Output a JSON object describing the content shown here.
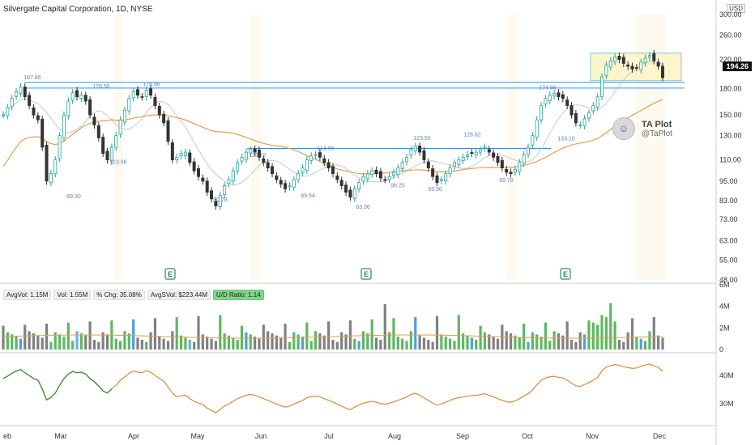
{
  "header": {
    "title": "Silvergate Capital Corporation, 1D, NYSE",
    "currency": "USD",
    "last_price": "194.26"
  },
  "watermark": {
    "name": "TA Plot",
    "handle": "@TaPlot"
  },
  "volume_stats": {
    "avg_vol": "AvgVol: 1.15M",
    "vol": "Vol: 1.55M",
    "pct_chg": "% Chg: 35.08%",
    "avg_dollar_vol": "AvgSVol: $223.44M",
    "ud_ratio": "U/D Ratio: 1.14"
  },
  "colors": {
    "up": "#26a69a",
    "down": "#333333",
    "ma_orange": "#e0a050",
    "ma_gray": "#c8c8c8",
    "trendline": "#2196f3",
    "highlight": "#fff5cc",
    "vol_up": "#4caf50",
    "vol_down": "#555555",
    "vol_blue": "#3a96dd",
    "rs_line": "#d98a3a",
    "rs_green": "#2e8b3a",
    "rs_blue": "#2a5ad8"
  },
  "chart_data": {
    "type": "candlestick",
    "y_scale": "log",
    "ylim": [
      48,
      300
    ],
    "price_ticks": [
      "300.00",
      "260.00",
      "220.00",
      "180.00",
      "150.00",
      "130.00",
      "110.00",
      "95.00",
      "83.00",
      "73.00",
      "63.00",
      "55.00",
      "48.00"
    ],
    "x_ticks": [
      "eb",
      "Mar",
      "Apr",
      "May",
      "Jun",
      "Jul",
      "Aug",
      "Sep",
      "Oct",
      "Nov",
      "Dec"
    ],
    "volume_ticks": [
      "6M",
      "4M",
      "2M",
      "0"
    ],
    "rs_ticks": [
      "40M",
      "30M"
    ],
    "annotations": [
      {
        "text": "187.86",
        "value": 187.86
      },
      {
        "text": "176.56",
        "value": 176.56
      },
      {
        "text": "178.96",
        "value": 178.96
      },
      {
        "text": "113.06",
        "value": 113.06
      },
      {
        "text": "89.30",
        "value": 89.3
      },
      {
        "text": "80.78",
        "value": 80.78
      },
      {
        "text": "118.72",
        "value": 118.72
      },
      {
        "text": "114.96",
        "value": 114.96
      },
      {
        "text": "89.64",
        "value": 89.64
      },
      {
        "text": "83.06",
        "value": 83.06
      },
      {
        "text": "96.25",
        "value": 96.25
      },
      {
        "text": "123.50",
        "value": 123.5
      },
      {
        "text": "93.90",
        "value": 93.9
      },
      {
        "text": "126.62",
        "value": 126.62
      },
      {
        "text": "99.78",
        "value": 99.78
      },
      {
        "text": "174.99",
        "value": 174.99
      },
      {
        "text": "133.10",
        "value": 133.1
      }
    ],
    "earnings_markers": [
      "E",
      "E",
      "E"
    ],
    "close_series": [
      150,
      158,
      168,
      176,
      182,
      170,
      160,
      150,
      145,
      120,
      95,
      100,
      110,
      130,
      150,
      165,
      175,
      170,
      172,
      165,
      150,
      140,
      128,
      115,
      110,
      120,
      130,
      145,
      155,
      168,
      176,
      172,
      170,
      178,
      172,
      160,
      150,
      142,
      125,
      110,
      112,
      115,
      116,
      108,
      102,
      98,
      95,
      88,
      84,
      80,
      86,
      92,
      96,
      102,
      108,
      112,
      116,
      118,
      116,
      112,
      108,
      104,
      100,
      96,
      93,
      90,
      92,
      96,
      100,
      104,
      110,
      113,
      114,
      112,
      108,
      104,
      100,
      96,
      92,
      88,
      85,
      90,
      94,
      98,
      100,
      102,
      100,
      97,
      96,
      98,
      101,
      104,
      108,
      112,
      118,
      121,
      116,
      110,
      104,
      98,
      94,
      96,
      100,
      104,
      108,
      110,
      112,
      114,
      115,
      116,
      118,
      120,
      116,
      112,
      108,
      104,
      101,
      100,
      103,
      108,
      114,
      120,
      130,
      145,
      160,
      168,
      172,
      174,
      170,
      168,
      160,
      150,
      142,
      140,
      146,
      152,
      160,
      170,
      195,
      212,
      218,
      224,
      220,
      214,
      210,
      206,
      208,
      216,
      222,
      226,
      218,
      210,
      194
    ]
  }
}
